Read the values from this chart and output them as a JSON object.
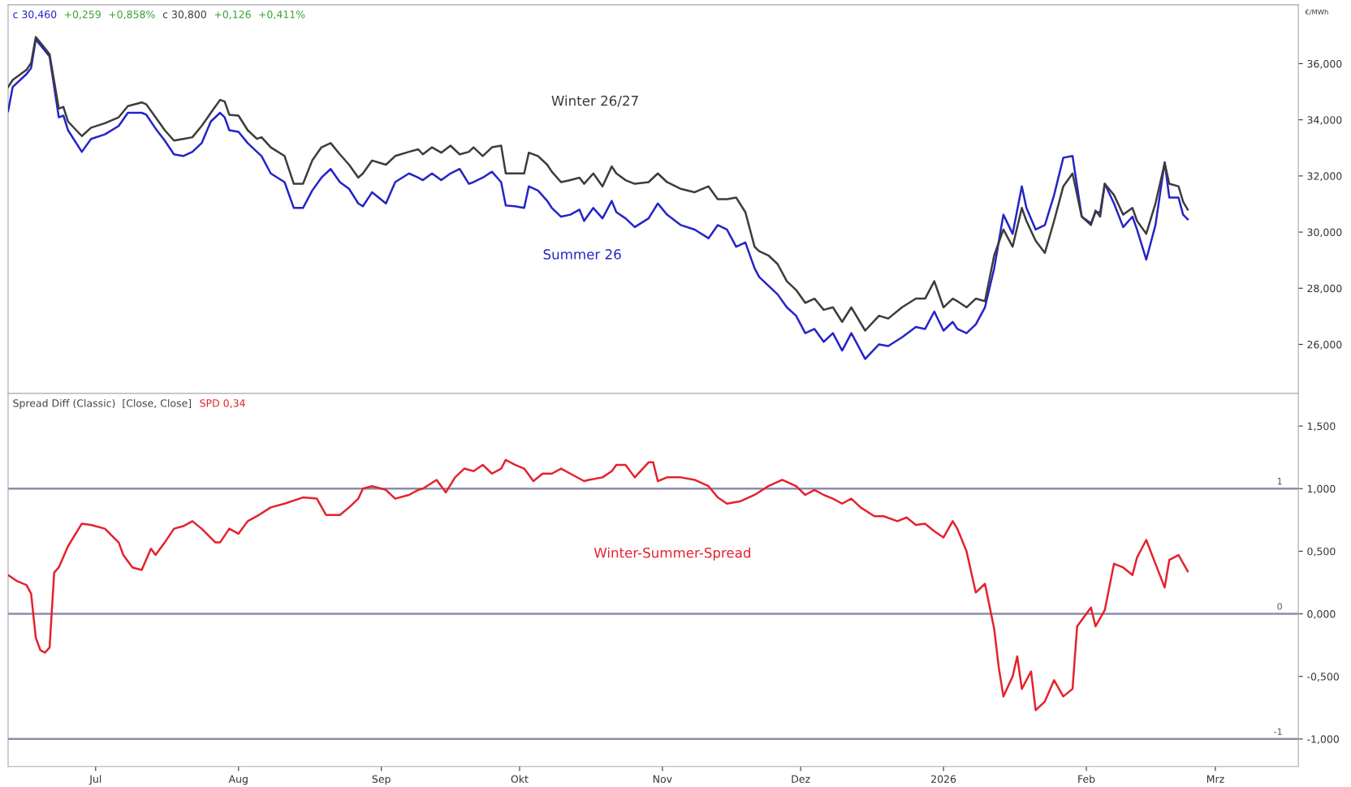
{
  "chart_data": [
    {
      "type": "line",
      "ylabel": "€/MWh",
      "tick_labels": "y",
      "grid": false,
      "legend": false,
      "annotations": [
        "c 30,460",
        "+0,259",
        "+0,858%",
        "c 30,800",
        "+0,126",
        "+0,411%"
      ],
      "x": [
        "2025-06-12",
        "2025-06-13",
        "2025-06-16",
        "2025-06-17",
        "2025-06-18",
        "2025-06-20",
        "2025-06-21",
        "2025-06-23",
        "2025-06-24",
        "2025-06-25",
        "2025-06-28",
        "2025-06-30",
        "2025-07-03",
        "2025-07-06",
        "2025-07-08",
        "2025-07-11",
        "2025-07-12",
        "2025-07-14",
        "2025-07-16",
        "2025-07-18",
        "2025-07-20",
        "2025-07-22",
        "2025-07-24",
        "2025-07-26",
        "2025-07-28",
        "2025-07-29",
        "2025-07-30",
        "2025-08-01",
        "2025-08-03",
        "2025-08-05",
        "2025-08-06",
        "2025-08-08",
        "2025-08-11",
        "2025-08-13",
        "2025-08-15",
        "2025-08-17",
        "2025-08-19",
        "2025-08-21",
        "2025-08-23",
        "2025-08-25",
        "2025-08-27",
        "2025-08-28",
        "2025-08-30",
        "2025-09-02",
        "2025-09-04",
        "2025-09-07",
        "2025-09-09",
        "2025-09-10",
        "2025-09-12",
        "2025-09-14",
        "2025-09-16",
        "2025-09-18",
        "2025-09-20",
        "2025-09-21",
        "2025-09-23",
        "2025-09-25",
        "2025-09-27",
        "2025-09-28",
        "2025-09-30",
        "2025-10-02",
        "2025-10-03",
        "2025-10-05",
        "2025-10-07",
        "2025-10-08",
        "2025-10-10",
        "2025-10-12",
        "2025-10-14",
        "2025-10-15",
        "2025-10-17",
        "2025-10-19",
        "2025-10-21",
        "2025-10-22",
        "2025-10-24",
        "2025-10-26",
        "2025-10-29",
        "2025-10-31",
        "2025-11-02",
        "2025-11-05",
        "2025-11-08",
        "2025-11-11",
        "2025-11-13",
        "2025-11-15",
        "2025-11-17",
        "2025-11-19",
        "2025-11-21",
        "2025-11-22",
        "2025-11-24",
        "2025-11-26",
        "2025-11-28",
        "2025-11-30",
        "2025-12-02",
        "2025-12-04",
        "2025-12-06",
        "2025-12-08",
        "2025-12-10",
        "2025-12-12",
        "2025-12-15",
        "2025-12-18",
        "2025-12-20",
        "2025-12-23",
        "2025-12-26",
        "2025-12-28",
        "2025-12-30",
        "2026-01-01",
        "2026-01-03",
        "2026-01-04",
        "2026-01-06",
        "2026-01-08",
        "2026-01-10",
        "2026-01-12",
        "2026-01-14",
        "2026-01-16",
        "2026-01-18",
        "2026-01-19",
        "2026-01-21",
        "2026-01-23",
        "2026-01-25",
        "2026-01-27",
        "2026-01-29",
        "2026-01-31",
        "2026-02-02",
        "2026-02-03",
        "2026-02-04",
        "2026-02-05",
        "2026-02-07",
        "2026-02-09",
        "2026-02-11",
        "2026-02-12",
        "2026-02-14",
        "2026-02-16",
        "2026-02-18",
        "2026-02-19",
        "2026-02-21",
        "2026-02-22",
        "2026-02-23"
      ],
      "series": [
        {
          "name": "Winter 26/27",
          "color": "#3c3c3c",
          "values": [
            35.17,
            35.42,
            35.78,
            36.03,
            36.95,
            36.55,
            36.34,
            34.4,
            34.46,
            33.94,
            33.42,
            33.72,
            33.88,
            34.09,
            34.49,
            34.62,
            34.55,
            34.09,
            33.63,
            33.26,
            33.32,
            33.38,
            33.78,
            34.25,
            34.71,
            34.65,
            34.18,
            34.15,
            33.63,
            33.32,
            33.38,
            33.02,
            32.71,
            31.72,
            31.72,
            32.55,
            33.02,
            33.17,
            32.77,
            32.4,
            31.94,
            32.09,
            32.55,
            32.4,
            32.71,
            32.86,
            32.95,
            32.77,
            33.02,
            32.83,
            33.08,
            32.77,
            32.86,
            33.02,
            32.71,
            33.02,
            33.08,
            32.09,
            32.09,
            32.09,
            32.83,
            32.71,
            32.4,
            32.15,
            31.78,
            31.85,
            31.94,
            31.72,
            32.09,
            31.63,
            32.34,
            32.09,
            31.85,
            31.72,
            31.78,
            32.09,
            31.78,
            31.54,
            31.42,
            31.63,
            31.17,
            31.17,
            31.23,
            30.71,
            29.48,
            29.32,
            29.17,
            28.86,
            28.25,
            27.94,
            27.48,
            27.63,
            27.23,
            27.32,
            26.8,
            27.32,
            26.49,
            27.02,
            26.92,
            27.32,
            27.63,
            27.63,
            28.25,
            27.32,
            27.63,
            27.54,
            27.32,
            27.63,
            27.54,
            29.17,
            30.09,
            29.48,
            30.86,
            30.4,
            29.69,
            29.26,
            30.4,
            31.63,
            32.09,
            30.55,
            30.25,
            30.77,
            30.55,
            31.72,
            31.32,
            30.62,
            30.86,
            30.4,
            29.94,
            31.02,
            32.46,
            31.72,
            31.63,
            31.08,
            30.8
          ]
        },
        {
          "name": "Summer 26",
          "color": "#2424c8",
          "values": [
            34.31,
            35.17,
            35.63,
            35.85,
            36.86,
            36.46,
            36.25,
            34.09,
            34.15,
            33.63,
            32.86,
            33.32,
            33.48,
            33.78,
            34.25,
            34.25,
            34.18,
            33.69,
            33.26,
            32.77,
            32.71,
            32.86,
            33.17,
            33.94,
            34.25,
            34.09,
            33.63,
            33.57,
            33.17,
            32.86,
            32.71,
            32.09,
            31.78,
            30.86,
            30.86,
            31.48,
            31.94,
            32.25,
            31.78,
            31.54,
            31.02,
            30.92,
            31.42,
            31.02,
            31.78,
            32.09,
            31.94,
            31.85,
            32.09,
            31.85,
            32.09,
            32.25,
            31.72,
            31.78,
            31.94,
            32.15,
            31.78,
            30.95,
            30.92,
            30.86,
            31.63,
            31.48,
            31.11,
            30.86,
            30.55,
            30.62,
            30.8,
            30.4,
            30.86,
            30.49,
            31.11,
            30.71,
            30.49,
            30.18,
            30.49,
            31.02,
            30.62,
            30.25,
            30.09,
            29.78,
            30.25,
            30.09,
            29.48,
            29.63,
            28.71,
            28.4,
            28.09,
            27.78,
            27.32,
            27.02,
            26.4,
            26.55,
            26.09,
            26.4,
            25.78,
            26.4,
            25.48,
            26.0,
            25.94,
            26.25,
            26.62,
            26.55,
            27.17,
            26.49,
            26.8,
            26.55,
            26.4,
            26.71,
            27.32,
            28.71,
            30.62,
            29.94,
            31.63,
            30.86,
            30.09,
            30.25,
            31.32,
            32.65,
            32.71,
            30.55,
            30.31,
            30.71,
            30.71,
            31.72,
            31.02,
            30.18,
            30.55,
            30.09,
            29.02,
            30.25,
            32.49,
            31.23,
            31.23,
            30.62,
            30.46
          ]
        }
      ],
      "xlim": [
        "2025-06-12",
        "2026-03-19"
      ],
      "ylim": [
        24.25,
        38.1
      ],
      "yticks": [
        {
          "value": 26,
          "label": "26,000"
        },
        {
          "value": 28,
          "label": "28,000"
        },
        {
          "value": 30,
          "label": "30,000"
        },
        {
          "value": 32,
          "label": "32,000"
        },
        {
          "value": 34,
          "label": "34,000"
        },
        {
          "value": 36,
          "label": "36,000"
        }
      ]
    },
    {
      "type": "line",
      "grid": false,
      "legend": false,
      "annotations": [
        "Spread Diff (Classic)  [Close, Close]",
        "SPD 0,34"
      ],
      "series": [
        {
          "name": "Winter-Summer-Spread",
          "color": "#e4222c",
          "x": [
            "2025-06-12",
            "2025-06-14",
            "2025-06-16",
            "2025-06-17",
            "2025-06-18",
            "2025-06-19",
            "2025-06-20",
            "2025-06-21",
            "2025-06-22",
            "2025-06-23",
            "2025-06-25",
            "2025-06-28",
            "2025-06-30",
            "2025-07-03",
            "2025-07-06",
            "2025-07-07",
            "2025-07-09",
            "2025-07-11",
            "2025-07-13",
            "2025-07-14",
            "2025-07-16",
            "2025-07-18",
            "2025-07-20",
            "2025-07-22",
            "2025-07-24",
            "2025-07-27",
            "2025-07-28",
            "2025-07-30",
            "2025-08-01",
            "2025-08-03",
            "2025-08-05",
            "2025-08-08",
            "2025-08-11",
            "2025-08-15",
            "2025-08-18",
            "2025-08-20",
            "2025-08-23",
            "2025-08-25",
            "2025-08-27",
            "2025-08-28",
            "2025-08-30",
            "2025-09-02",
            "2025-09-04",
            "2025-09-07",
            "2025-09-09",
            "2025-09-10",
            "2025-09-13",
            "2025-09-15",
            "2025-09-17",
            "2025-09-19",
            "2025-09-21",
            "2025-09-23",
            "2025-09-25",
            "2025-09-27",
            "2025-09-28",
            "2025-09-30",
            "2025-10-02",
            "2025-10-04",
            "2025-10-06",
            "2025-10-08",
            "2025-10-10",
            "2025-10-12",
            "2025-10-15",
            "2025-10-16",
            "2025-10-19",
            "2025-10-21",
            "2025-10-22",
            "2025-10-24",
            "2025-10-26",
            "2025-10-29",
            "2025-10-30",
            "2025-10-31",
            "2025-11-02",
            "2025-11-05",
            "2025-11-08",
            "2025-11-11",
            "2025-11-13",
            "2025-11-15",
            "2025-11-18",
            "2025-11-21",
            "2025-11-24",
            "2025-11-27",
            "2025-11-30",
            "2025-12-02",
            "2025-12-04",
            "2025-12-06",
            "2025-12-08",
            "2025-12-10",
            "2025-12-12",
            "2025-12-14",
            "2025-12-17",
            "2025-12-19",
            "2025-12-22",
            "2025-12-24",
            "2025-12-26",
            "2025-12-28",
            "2025-12-30",
            "2026-01-01",
            "2026-01-03",
            "2026-01-04",
            "2026-01-06",
            "2026-01-08",
            "2026-01-10",
            "2026-01-12",
            "2026-01-13",
            "2026-01-14",
            "2026-01-16",
            "2026-01-17",
            "2026-01-18",
            "2026-01-20",
            "2026-01-21",
            "2026-01-23",
            "2026-01-25",
            "2026-01-27",
            "2026-01-29",
            "2026-01-30",
            "2026-02-02",
            "2026-02-03",
            "2026-02-05",
            "2026-02-07",
            "2026-02-09",
            "2026-02-11",
            "2026-02-12",
            "2026-02-14",
            "2026-02-16",
            "2026-02-18",
            "2026-02-19",
            "2026-02-21",
            "2026-02-23"
          ],
          "values": [
            0.31,
            0.26,
            0.23,
            0.16,
            -0.19,
            -0.29,
            -0.31,
            -0.27,
            0.33,
            0.37,
            0.54,
            0.72,
            0.71,
            0.68,
            0.57,
            0.47,
            0.37,
            0.35,
            0.52,
            0.47,
            0.57,
            0.68,
            0.7,
            0.74,
            0.68,
            0.57,
            0.57,
            0.68,
            0.64,
            0.74,
            0.78,
            0.85,
            0.88,
            0.93,
            0.92,
            0.79,
            0.79,
            0.85,
            0.92,
            1.0,
            1.02,
            0.99,
            0.92,
            0.95,
            0.99,
            1.0,
            1.07,
            0.97,
            1.09,
            1.16,
            1.14,
            1.19,
            1.12,
            1.16,
            1.23,
            1.19,
            1.16,
            1.06,
            1.12,
            1.12,
            1.16,
            1.12,
            1.06,
            1.07,
            1.09,
            1.14,
            1.19,
            1.19,
            1.09,
            1.21,
            1.21,
            1.06,
            1.09,
            1.09,
            1.07,
            1.02,
            0.93,
            0.88,
            0.9,
            0.95,
            1.02,
            1.07,
            1.02,
            0.95,
            0.99,
            0.95,
            0.92,
            0.88,
            0.92,
            0.85,
            0.78,
            0.78,
            0.74,
            0.77,
            0.71,
            0.72,
            0.66,
            0.61,
            0.74,
            0.68,
            0.5,
            0.17,
            0.24,
            -0.12,
            -0.43,
            -0.66,
            -0.5,
            -0.34,
            -0.6,
            -0.46,
            -0.77,
            -0.7,
            -0.53,
            -0.66,
            -0.6,
            -0.1,
            0.05,
            -0.1,
            0.03,
            0.4,
            0.37,
            0.31,
            0.45,
            0.59,
            0.4,
            0.21,
            0.43,
            0.47,
            0.34
          ]
        }
      ],
      "ref_lines": [
        {
          "axis": "y",
          "value": 1,
          "label": "1",
          "color": "#8c8cac"
        },
        {
          "axis": "y",
          "value": 0,
          "label": "0",
          "color": "#8c8cac"
        },
        {
          "axis": "y",
          "value": -1,
          "label": "-1",
          "color": "#8c8cac"
        }
      ],
      "xlim": [
        "2025-06-12",
        "2026-03-19"
      ],
      "xticks": [
        {
          "value": "2025-07-01",
          "label": "Jul"
        },
        {
          "value": "2025-08-01",
          "label": "Aug"
        },
        {
          "value": "2025-09-01",
          "label": "Sep"
        },
        {
          "value": "2025-10-01",
          "label": "Okt"
        },
        {
          "value": "2025-11-01",
          "label": "Nov"
        },
        {
          "value": "2025-12-01",
          "label": "Dez"
        },
        {
          "value": "2026-01-01",
          "label": "2026"
        },
        {
          "value": "2026-02-01",
          "label": "Feb"
        },
        {
          "value": "2026-03-01",
          "label": "Mrz"
        }
      ],
      "ylim": [
        -1.22,
        1.76
      ],
      "yticks": [
        {
          "value": -1,
          "label": "-1,000"
        },
        {
          "value": -0.5,
          "label": "-0,500"
        },
        {
          "value": 0,
          "label": "0,000"
        },
        {
          "value": 0.5,
          "label": "0,500"
        },
        {
          "value": 1,
          "label": "1,000"
        },
        {
          "value": 1.5,
          "label": "1,500"
        }
      ]
    }
  ]
}
